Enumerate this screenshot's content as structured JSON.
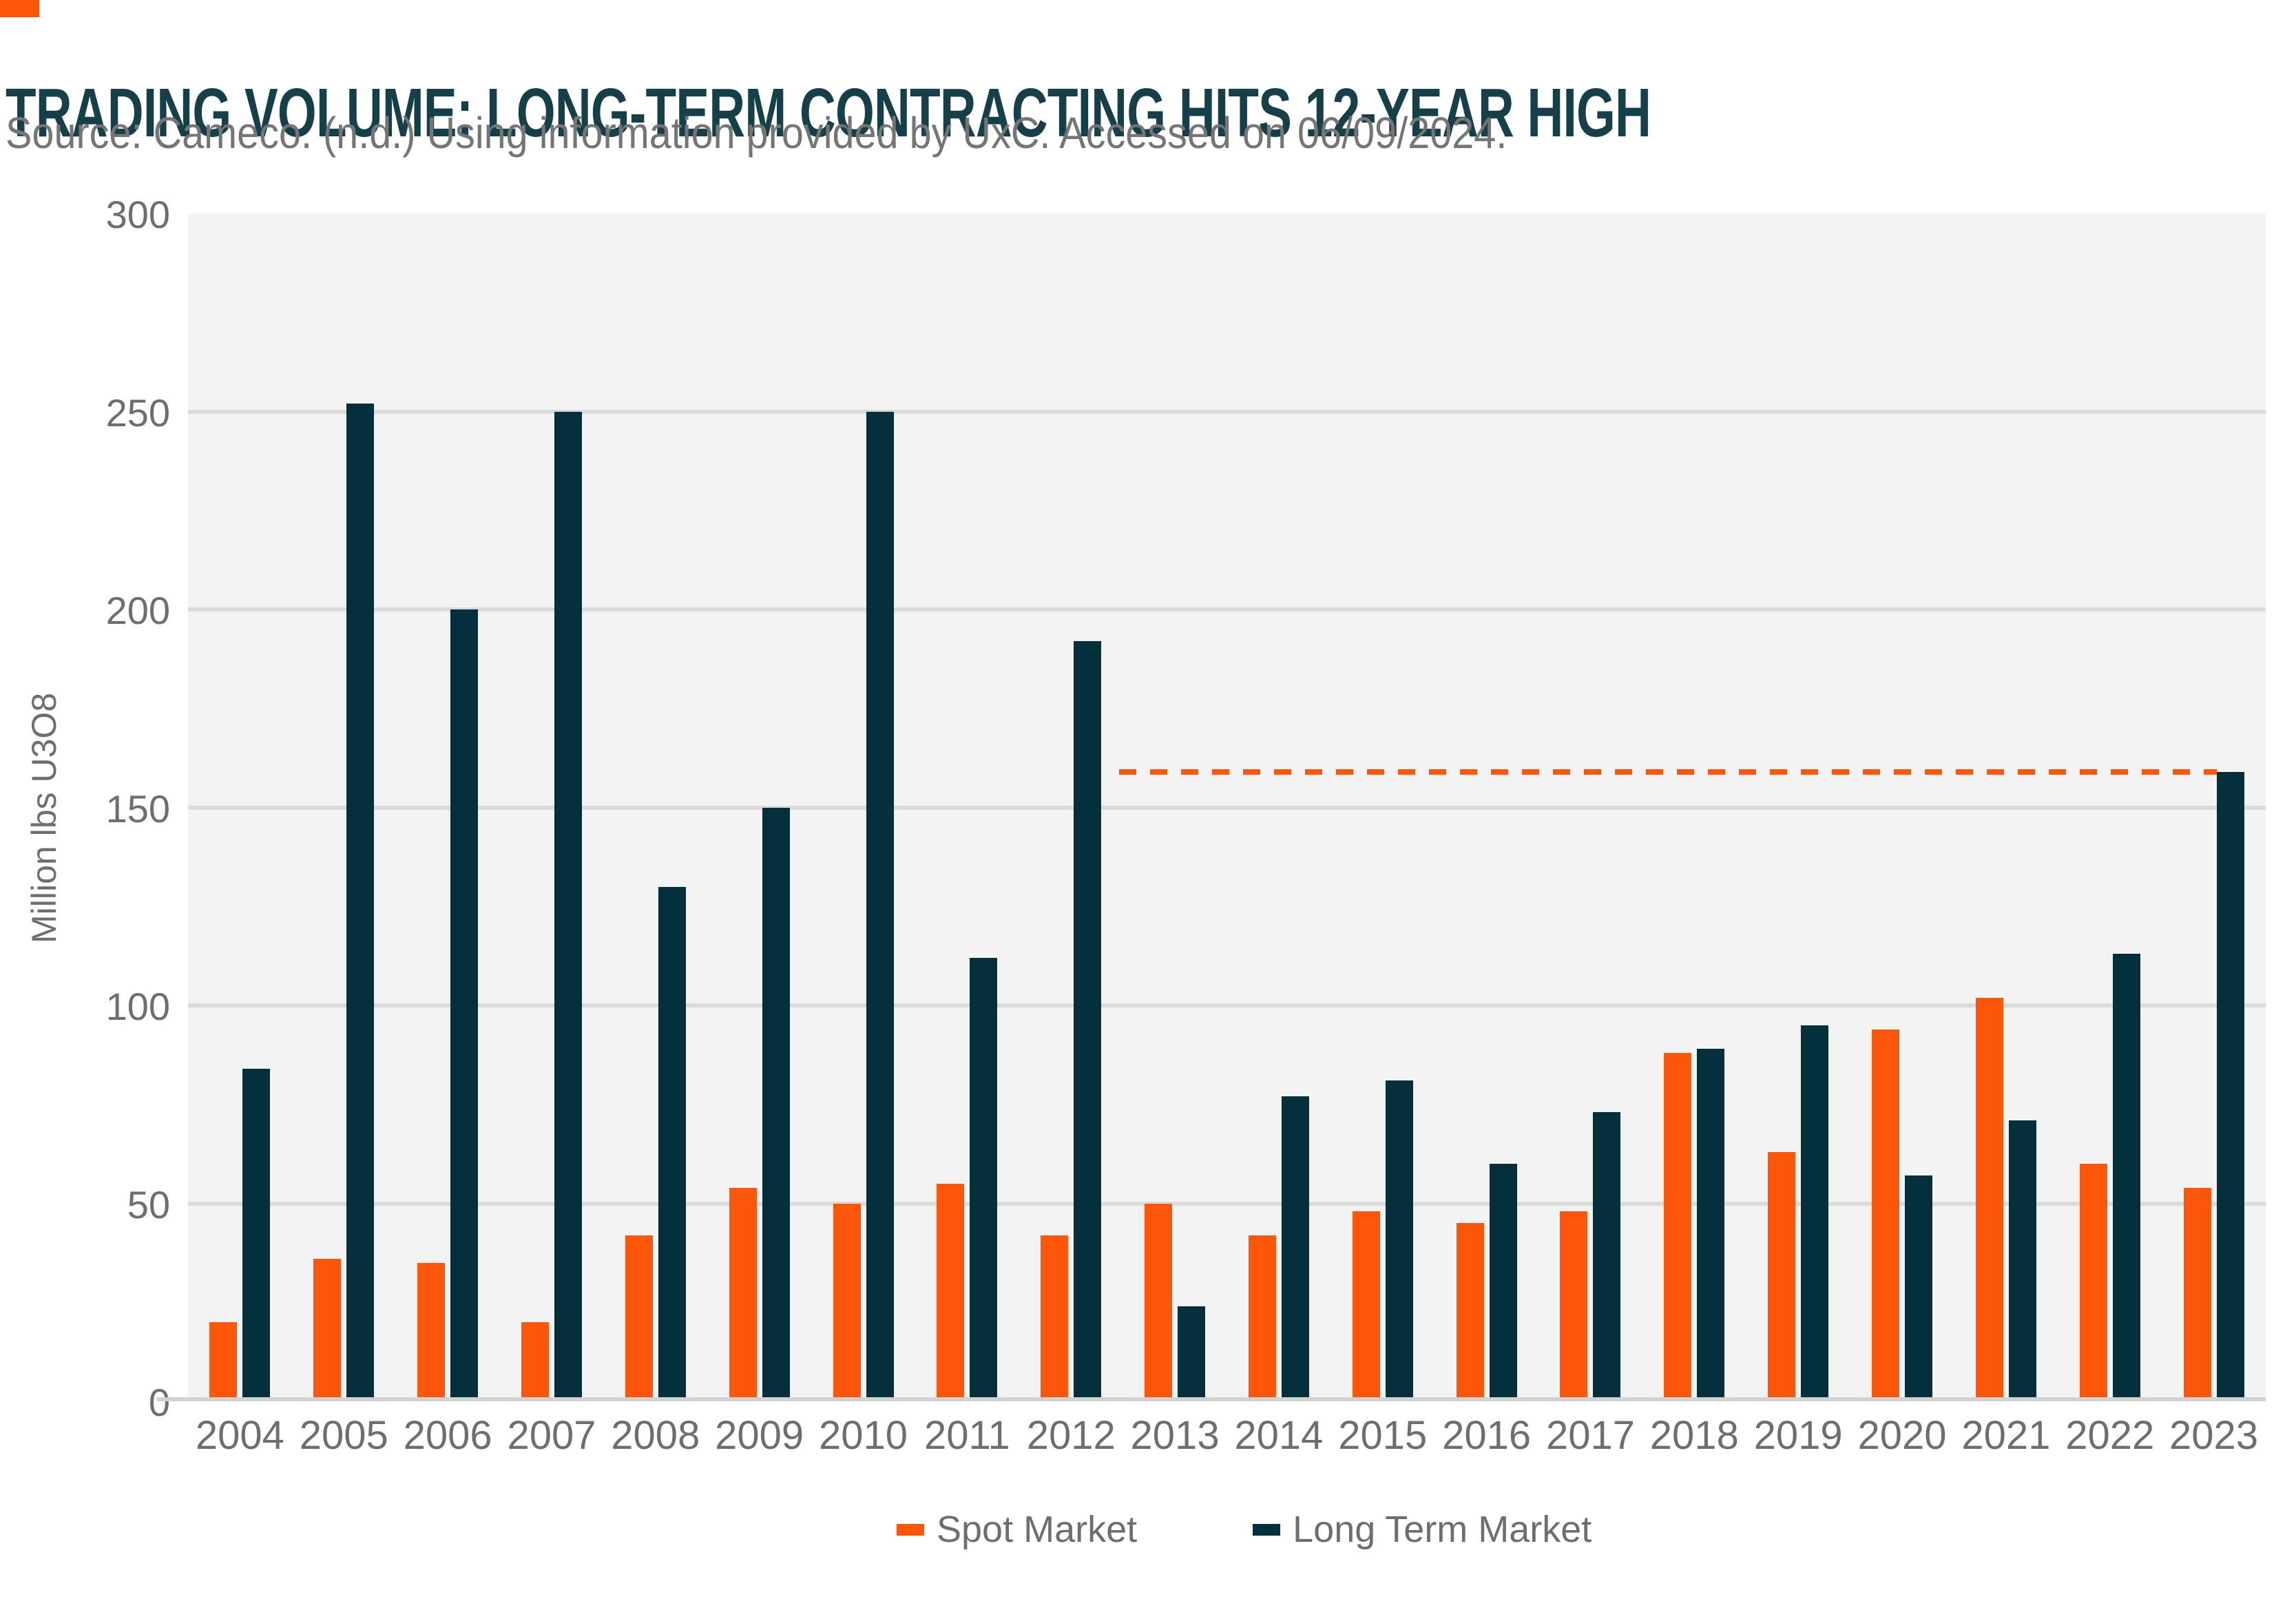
{
  "page": {
    "title": "TRADING VOLUME: LONG-TERM CONTRACTING HITS 12-YEAR HIGH",
    "source_line": "Source: Cameco. (n.d.) Using information provided by UxC. Accessed on 06/09/2024."
  },
  "colors": {
    "accent_orange": "#FB5609",
    "dark_navy": "#03303A",
    "title_text": "#15404A",
    "muted_text": "#6e6e6e",
    "source_text": "#757575",
    "plot_background": "#F3F3F3",
    "gridline": "#DBDBDB",
    "axis_line": "#D1D3D1"
  },
  "chart_data": {
    "type": "bar",
    "title": "TRADING VOLUME: LONG-TERM CONTRACTING HITS 12-YEAR HIGH",
    "xlabel": "",
    "ylabel": "Million lbs U3O8",
    "ylim": [
      0,
      300
    ],
    "yticks": [
      0,
      50,
      100,
      150,
      200,
      250,
      300
    ],
    "grid": "horizontal",
    "legend_position": "bottom",
    "categories": [
      "2004",
      "2005",
      "2006",
      "2007",
      "2008",
      "2009",
      "2010",
      "2011",
      "2012",
      "2013",
      "2014",
      "2015",
      "2016",
      "2017",
      "2018",
      "2019",
      "2020",
      "2021",
      "2022",
      "2023"
    ],
    "series": [
      {
        "name": "Spot Market",
        "color": "#FB5609",
        "values": [
          20,
          36,
          35,
          20,
          42,
          54,
          50,
          55,
          42,
          50,
          42,
          48,
          45,
          48,
          88,
          63,
          94,
          102,
          60,
          54
        ]
      },
      {
        "name": "Long Term Market",
        "color": "#03303A",
        "values": [
          84,
          252,
          200,
          250,
          130,
          150,
          250,
          112,
          192,
          24,
          77,
          81,
          60,
          73,
          89,
          95,
          57,
          71,
          113,
          159
        ]
      }
    ],
    "annotation": {
      "type": "dashed-line",
      "value": 159,
      "start_after_category": "2012",
      "end_category": "2023",
      "color": "#FB5609"
    }
  }
}
